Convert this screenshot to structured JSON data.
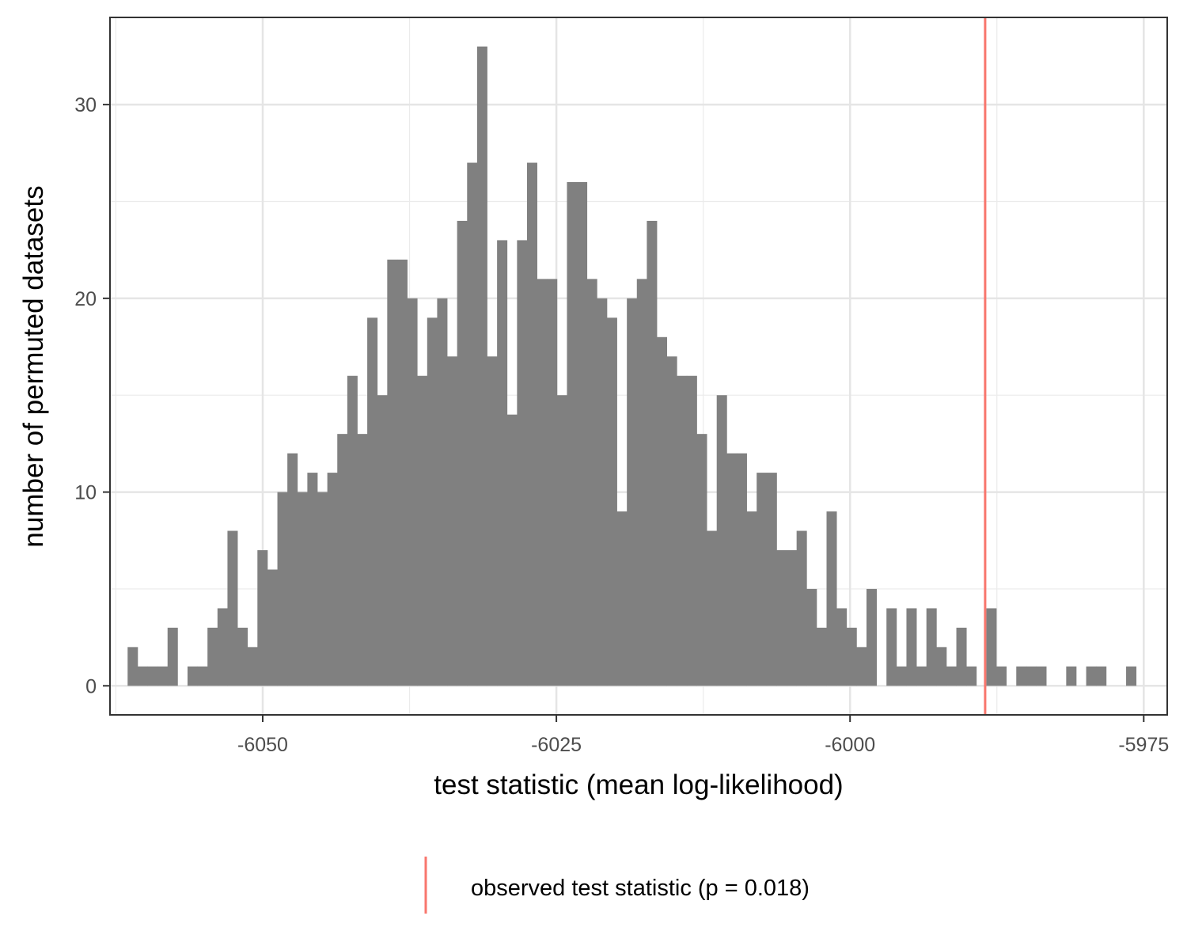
{
  "chart_data": {
    "type": "bar",
    "title": "",
    "xlabel": "test statistic (mean log-likelihood)",
    "ylabel": "number of permuted datasets",
    "xlim": [
      -6063,
      -5973
    ],
    "ylim": [
      -1.5,
      34.5
    ],
    "x_ticks": [
      -6050,
      -6025,
      -6000,
      -5975
    ],
    "x_tick_labels": [
      "-6050",
      "-6025",
      "-6000",
      "-5975"
    ],
    "y_ticks": [
      0,
      10,
      20,
      30
    ],
    "y_tick_labels": [
      "0",
      "10",
      "20",
      "30"
    ],
    "grid": true,
    "bin_width": 0.85,
    "bin_start": -6061.5,
    "counts": [
      2,
      1,
      1,
      1,
      3,
      0,
      1,
      1,
      3,
      4,
      8,
      3,
      2,
      7,
      6,
      10,
      12,
      10,
      11,
      10,
      11,
      13,
      16,
      13,
      19,
      15,
      22,
      22,
      20,
      16,
      19,
      20,
      17,
      24,
      27,
      33,
      17,
      23,
      14,
      23,
      27,
      21,
      21,
      15,
      26,
      26,
      21,
      20,
      19,
      9,
      20,
      21,
      24,
      18,
      17,
      16,
      16,
      13,
      8,
      15,
      12,
      12,
      9,
      11,
      11,
      7,
      7,
      8,
      5,
      3,
      9,
      4,
      3,
      2,
      5,
      0,
      4,
      1,
      4,
      1,
      4,
      2,
      1,
      3,
      1,
      0,
      4,
      1,
      0,
      1,
      1,
      1,
      0,
      0,
      1,
      0,
      1,
      1,
      0,
      0,
      1,
      0
    ],
    "bar_color": "#808080",
    "observed_statistic": -5988.5,
    "observed_color": "#f8766d",
    "legend": {
      "position": "bottom",
      "label": "observed test statistic (p = 0.018)"
    }
  }
}
